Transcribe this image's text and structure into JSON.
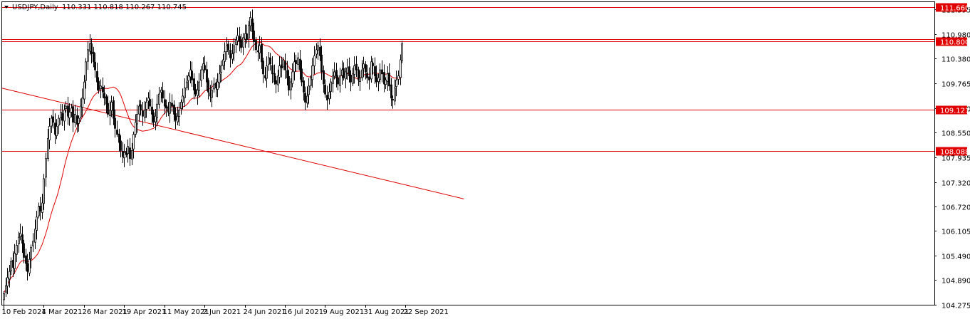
{
  "header": {
    "symbol": "USDJPY,Daily",
    "ohlc": "110.331 110.818 110.267 110.745"
  },
  "colors": {
    "background": "#ffffff",
    "frame": "#000000",
    "candle": "#000000",
    "level_line": "#e00000",
    "moving_average": "#e00000",
    "trendline": "#e00000",
    "label_bg": "#e00000",
    "label_text": "#ffffff"
  },
  "chart_data": {
    "type": "candlestick",
    "symbol": "USDJPY",
    "timeframe": "Daily",
    "last_bar": {
      "open": 110.331,
      "high": 110.818,
      "low": 110.267,
      "close": 110.745
    },
    "y_range": [
      104.275,
      111.78
    ],
    "y_ticks": [
      "111.595",
      "110.980",
      "110.380",
      "109.765",
      "109.150",
      "108.550",
      "107.935",
      "107.320",
      "106.720",
      "106.105",
      "105.490",
      "104.890",
      "104.275"
    ],
    "x_labels": [
      "10 Feb 2021",
      "4 Mar 2021",
      "26 Mar 2021",
      "19 Apr 2021",
      "11 May 2021",
      "2 Jun 2021",
      "24 Jun 2021",
      "16 Jul 2021",
      "9 Aug 2021",
      "31 Aug 2021",
      "22 Sep 2021"
    ],
    "horizontal_levels": [
      {
        "value": 111.66,
        "label": "111.660",
        "tag": true
      },
      {
        "value": 110.86,
        "label": "",
        "tag": false
      },
      {
        "value": 110.8,
        "label": "110.800",
        "tag": true
      },
      {
        "value": 109.121,
        "label": "109.121",
        "tag": true
      },
      {
        "value": 108.088,
        "label": "108.088",
        "tag": true
      }
    ],
    "trendline": {
      "start": {
        "bar": 0,
        "price": 109.65
      },
      "end": {
        "bar": 252,
        "price": 106.9
      }
    },
    "moving_average": {
      "name": "",
      "color": "#e00000"
    },
    "closes": [
      104.55,
      104.75,
      104.95,
      105.1,
      105.35,
      105.2,
      105.55,
      105.75,
      105.95,
      106.05,
      105.8,
      105.45,
      105.3,
      105.1,
      105.4,
      105.7,
      105.85,
      106.15,
      106.45,
      106.7,
      106.6,
      106.8,
      107.4,
      107.9,
      108.4,
      108.7,
      108.9,
      108.8,
      108.5,
      108.7,
      108.9,
      109.05,
      108.85,
      109.1,
      109.2,
      108.95,
      109.05,
      109.15,
      108.8,
      109.0,
      108.75,
      108.9,
      109.2,
      109.4,
      109.8,
      110.3,
      110.6,
      110.75,
      110.5,
      110.3,
      110.1,
      109.8,
      109.6,
      109.7,
      109.55,
      109.4,
      109.25,
      109.0,
      109.1,
      109.3,
      108.9,
      108.65,
      108.5,
      108.3,
      108.1,
      107.95,
      108.05,
      108.0,
      108.2,
      107.9,
      108.1,
      108.5,
      108.8,
      109.0,
      109.2,
      109.1,
      108.95,
      109.1,
      109.3,
      109.4,
      109.2,
      109.0,
      108.8,
      108.95,
      109.25,
      109.5,
      109.6,
      109.4,
      109.2,
      109.15,
      109.05,
      109.3,
      109.2,
      109.0,
      108.85,
      108.95,
      109.1,
      109.3,
      109.45,
      109.65,
      109.8,
      109.95,
      110.1,
      109.85,
      109.6,
      109.5,
      109.6,
      109.8,
      110.1,
      110.25,
      110.1,
      109.8,
      109.55,
      109.45,
      109.6,
      109.75,
      109.65,
      109.8,
      110.0,
      110.2,
      110.35,
      110.55,
      110.7,
      110.6,
      110.4,
      110.5,
      110.7,
      110.85,
      110.95,
      110.8,
      110.65,
      110.9,
      111.0,
      110.85,
      111.2,
      111.4,
      111.05,
      110.8,
      110.6,
      110.55,
      110.7,
      110.3,
      110.0,
      109.9,
      110.2,
      110.4,
      110.25,
      110.0,
      109.8,
      109.75,
      109.95,
      110.2,
      110.15,
      110.35,
      110.1,
      109.9,
      109.6,
      109.8,
      110.05,
      110.3,
      110.25,
      110.4,
      110.1,
      109.8,
      109.55,
      109.3,
      109.45,
      109.7,
      109.9,
      110.2,
      110.45,
      110.6,
      110.7,
      110.45,
      110.05,
      109.75,
      109.5,
      109.35,
      109.55,
      109.8,
      109.95,
      110.05,
      109.9,
      109.75,
      109.95,
      110.1,
      109.9,
      110.05,
      110.15,
      109.95,
      109.8,
      110.0,
      110.2,
      110.1,
      109.85,
      109.9,
      110.1,
      110.25,
      110.05,
      109.9,
      109.85,
      110.3,
      110.2,
      109.95,
      109.8,
      109.9,
      110.1,
      110.0,
      109.75,
      109.85,
      110.0,
      109.7,
      109.4,
      109.35,
      109.65,
      109.85,
      109.95,
      110.35,
      110.745
    ]
  }
}
